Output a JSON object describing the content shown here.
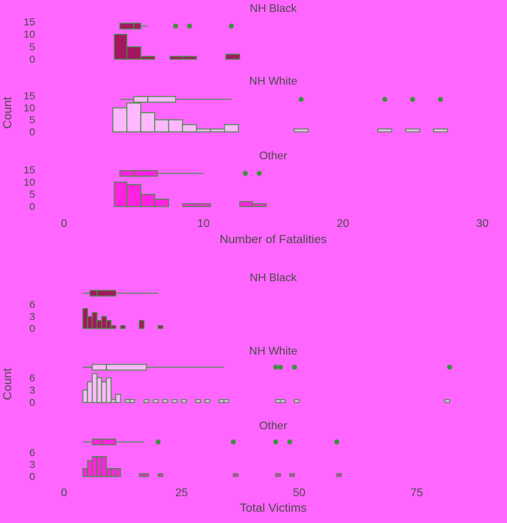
{
  "colors": {
    "background": "#ff66ff",
    "axis_text": "#4a4a4a",
    "outline": "#3f8f3f",
    "point": "#3f8f3f",
    "black_fill": "#a3175f",
    "white_fill": "#ffb8ff",
    "other_fill": "#ff22e0"
  },
  "chart_data": [
    {
      "type": "histogram",
      "xlabel": "Number of Fatalities",
      "ylabel": "Count",
      "xlim": [
        0,
        30
      ],
      "xticks": [
        "0",
        "10",
        "20",
        "30"
      ],
      "yticks": [
        "0",
        "5",
        "10",
        "15"
      ],
      "ymax": 15,
      "panels": [
        {
          "title": "NH Black",
          "fill": "black_fill",
          "bars": [
            {
              "x0": 3.6,
              "x1": 4.5,
              "count": 10
            },
            {
              "x0": 4.5,
              "x1": 5.5,
              "count": 5
            },
            {
              "x0": 5.5,
              "x1": 6.5,
              "count": 1
            },
            {
              "x0": 7.6,
              "x1": 8.6,
              "count": 1
            },
            {
              "x0": 8.6,
              "x1": 9.5,
              "count": 1
            },
            {
              "x0": 11.6,
              "x1": 12.6,
              "count": 2
            }
          ],
          "box": {
            "whisker_low": 4,
            "q1": 4,
            "median": 5,
            "q3": 5.5,
            "whisker_high": 6
          },
          "outliers": [
            8,
            9,
            12
          ]
        },
        {
          "title": "NH White",
          "fill": "white_fill",
          "bars": [
            {
              "x0": 3.5,
              "x1": 4.5,
              "count": 10
            },
            {
              "x0": 4.5,
              "x1": 5.5,
              "count": 12
            },
            {
              "x0": 5.5,
              "x1": 6.5,
              "count": 8
            },
            {
              "x0": 6.5,
              "x1": 7.5,
              "count": 5
            },
            {
              "x0": 7.5,
              "x1": 8.5,
              "count": 5
            },
            {
              "x0": 8.5,
              "x1": 9.5,
              "count": 3
            },
            {
              "x0": 9.5,
              "x1": 10.5,
              "count": 1
            },
            {
              "x0": 10.5,
              "x1": 11.5,
              "count": 1
            },
            {
              "x0": 11.5,
              "x1": 12.5,
              "count": 3
            },
            {
              "x0": 16.5,
              "x1": 17.5,
              "count": 1
            },
            {
              "x0": 22.5,
              "x1": 23.5,
              "count": 1
            },
            {
              "x0": 24.5,
              "x1": 25.5,
              "count": 1
            },
            {
              "x0": 26.5,
              "x1": 27.5,
              "count": 1
            }
          ],
          "box": {
            "whisker_low": 4,
            "q1": 5,
            "median": 6,
            "q3": 8,
            "whisker_high": 12
          },
          "outliers": [
            17,
            23,
            25,
            27
          ]
        },
        {
          "title": "Other",
          "fill": "other_fill",
          "bars": [
            {
              "x0": 3.6,
              "x1": 4.5,
              "count": 10
            },
            {
              "x0": 4.5,
              "x1": 5.5,
              "count": 9
            },
            {
              "x0": 5.5,
              "x1": 6.5,
              "count": 5
            },
            {
              "x0": 6.5,
              "x1": 7.5,
              "count": 3
            },
            {
              "x0": 8.5,
              "x1": 9.5,
              "count": 1
            },
            {
              "x0": 9.5,
              "x1": 10.5,
              "count": 1
            },
            {
              "x0": 12.6,
              "x1": 13.5,
              "count": 2
            },
            {
              "x0": 13.5,
              "x1": 14.5,
              "count": 1
            }
          ],
          "box": {
            "whisker_low": 4,
            "q1": 4,
            "median": 5,
            "q3": 6.7,
            "whisker_high": 10
          },
          "outliers": [
            13,
            14
          ]
        }
      ]
    },
    {
      "type": "histogram",
      "xlabel": "Total Victims",
      "ylabel": "Count",
      "xlim": [
        0,
        93
      ],
      "xticks": [
        "0",
        "25",
        "50",
        "75"
      ],
      "xtick_values": [
        0,
        25,
        50,
        75
      ],
      "yticks": [
        "0",
        "3",
        "6"
      ],
      "ymax": 6,
      "panels": [
        {
          "title": "NH Black",
          "fill": "black_fill",
          "bars": [
            {
              "x0": 4,
              "x1": 5,
              "count": 5
            },
            {
              "x0": 5,
              "x1": 6,
              "count": 3
            },
            {
              "x0": 6,
              "x1": 7,
              "count": 4
            },
            {
              "x0": 7,
              "x1": 8,
              "count": 2
            },
            {
              "x0": 8,
              "x1": 9,
              "count": 3
            },
            {
              "x0": 9,
              "x1": 10,
              "count": 2
            },
            {
              "x0": 10,
              "x1": 11,
              "count": 1
            },
            {
              "x0": 12,
              "x1": 13,
              "count": 1
            },
            {
              "x0": 16,
              "x1": 17,
              "count": 2
            },
            {
              "x0": 20,
              "x1": 21,
              "count": 1
            }
          ],
          "box": {
            "whisker_low": 4,
            "q1": 5.5,
            "median": 7,
            "q3": 11,
            "whisker_high": 20
          }
        },
        {
          "title": "NH White",
          "fill": "white_fill",
          "bars": [
            {
              "x0": 4,
              "x1": 5,
              "count": 3
            },
            {
              "x0": 5,
              "x1": 6,
              "count": 5
            },
            {
              "x0": 6,
              "x1": 7,
              "count": 7
            },
            {
              "x0": 7,
              "x1": 8,
              "count": 6
            },
            {
              "x0": 8,
              "x1": 9,
              "count": 5
            },
            {
              "x0": 9,
              "x1": 10,
              "count": 6
            },
            {
              "x0": 10,
              "x1": 11,
              "count": 1
            },
            {
              "x0": 11,
              "x1": 12,
              "count": 2
            },
            {
              "x0": 13,
              "x1": 14,
              "count": 1
            },
            {
              "x0": 14,
              "x1": 15,
              "count": 1
            },
            {
              "x0": 17,
              "x1": 18,
              "count": 1
            },
            {
              "x0": 19,
              "x1": 20,
              "count": 1
            },
            {
              "x0": 21,
              "x1": 22,
              "count": 1
            },
            {
              "x0": 23,
              "x1": 24,
              "count": 1
            },
            {
              "x0": 25,
              "x1": 26,
              "count": 1
            },
            {
              "x0": 28,
              "x1": 29,
              "count": 1
            },
            {
              "x0": 30,
              "x1": 31,
              "count": 1
            },
            {
              "x0": 33,
              "x1": 34,
              "count": 1
            },
            {
              "x0": 34,
              "x1": 35,
              "count": 1
            },
            {
              "x0": 45,
              "x1": 46,
              "count": 1
            },
            {
              "x0": 46,
              "x1": 47,
              "count": 1
            },
            {
              "x0": 49,
              "x1": 50,
              "count": 1
            },
            {
              "x0": 81,
              "x1": 82,
              "count": 1
            }
          ],
          "box": {
            "whisker_low": 4,
            "q1": 6,
            "median": 9,
            "q3": 17.5,
            "whisker_high": 34
          },
          "outliers": [
            45,
            46,
            49,
            82
          ]
        },
        {
          "title": "Other",
          "fill": "other_fill",
          "bars": [
            {
              "x0": 4,
              "x1": 5,
              "count": 2
            },
            {
              "x0": 5,
              "x1": 6,
              "count": 4
            },
            {
              "x0": 6,
              "x1": 7,
              "count": 5
            },
            {
              "x0": 7,
              "x1": 8,
              "count": 5
            },
            {
              "x0": 8,
              "x1": 9,
              "count": 5
            },
            {
              "x0": 9,
              "x1": 10,
              "count": 2
            },
            {
              "x0": 10,
              "x1": 11,
              "count": 2
            },
            {
              "x0": 11,
              "x1": 12,
              "count": 2
            },
            {
              "x0": 16,
              "x1": 17,
              "count": 1
            },
            {
              "x0": 17,
              "x1": 18,
              "count": 1
            },
            {
              "x0": 20,
              "x1": 21,
              "count": 1
            },
            {
              "x0": 36,
              "x1": 37,
              "count": 1
            },
            {
              "x0": 45,
              "x1": 46,
              "count": 1
            },
            {
              "x0": 48,
              "x1": 49,
              "count": 1
            },
            {
              "x0": 58,
              "x1": 59,
              "count": 1
            }
          ],
          "box": {
            "whisker_low": 4,
            "q1": 6,
            "median": 8,
            "q3": 11,
            "whisker_high": 17
          },
          "outliers": [
            20,
            36,
            45,
            48,
            58
          ]
        }
      ]
    }
  ]
}
